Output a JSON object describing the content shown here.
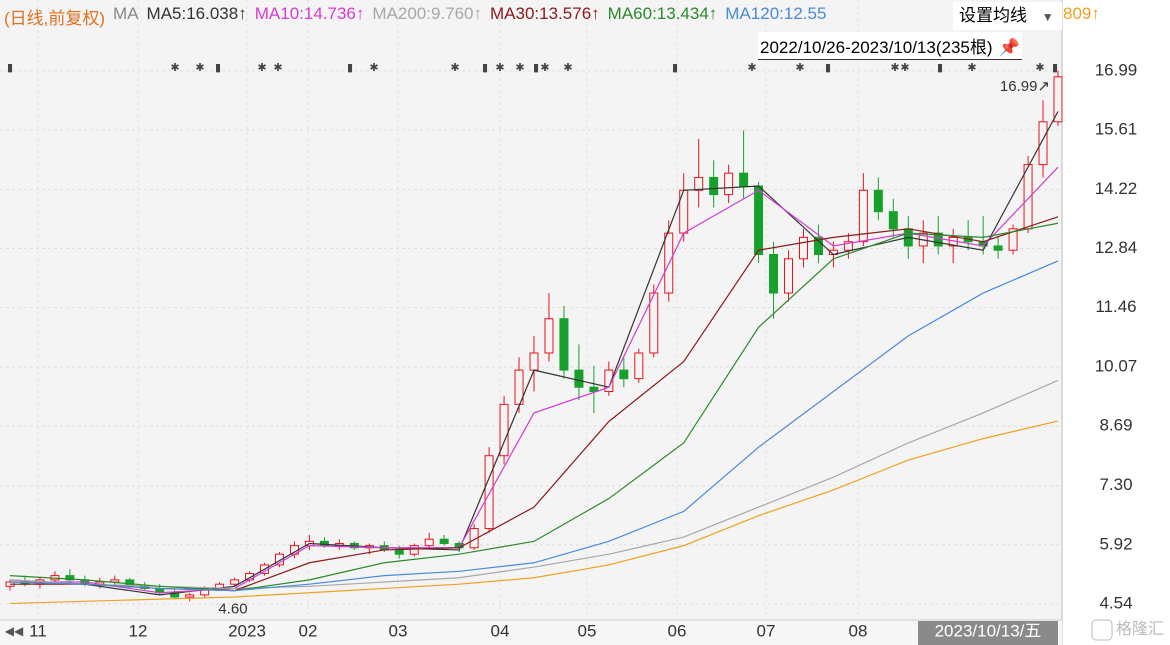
{
  "legend": {
    "mode": "(日线,前复权)",
    "prefix": "MA",
    "items": [
      {
        "text": "MA5:16.038↑",
        "color": "#333333"
      },
      {
        "text": "MA10:14.736↑",
        "color": "#d23cd2"
      },
      {
        "text": "MA200:9.760↑",
        "color": "#a8a8a8"
      },
      {
        "text": "MA30:13.576↑",
        "color": "#8b1a1a"
      },
      {
        "text": "MA60:13.434↑",
        "color": "#2a8a2a"
      },
      {
        "text": "MA120:12.55",
        "color": "#4a8ad8"
      }
    ],
    "tail": {
      "text": "809↑",
      "color": "#f0a020"
    }
  },
  "settings_button": "设置均线",
  "range": "2022/10/26-2023/10/13(235根)",
  "watermark": "格隆汇",
  "chart_data": {
    "type": "candlestick",
    "up_color": "#e8141c",
    "down_color": "#17a02c",
    "grid": true,
    "ylim": [
      4.28,
      17.36
    ],
    "yticks": [
      16.99,
      15.61,
      14.22,
      12.84,
      11.46,
      10.07,
      8.69,
      {
        "value": 7.3,
        "label": "7.30"
      },
      5.92,
      4.54
    ],
    "x_labels": [
      "11",
      "12",
      "2023",
      "02",
      "03",
      "04",
      "05",
      "06",
      "07",
      "08"
    ],
    "cursor_label": "2023/10/13/五",
    "annotations": [
      {
        "value": 4.6,
        "label": "4.60"
      },
      {
        "value": 16.99,
        "label": "16.99↗"
      }
    ],
    "candles": [
      [
        4.95,
        5.1,
        4.85,
        5.05
      ],
      [
        5.05,
        5.2,
        4.95,
        5.0
      ],
      [
        5.0,
        5.15,
        4.9,
        5.1
      ],
      [
        5.1,
        5.3,
        5.0,
        5.2
      ],
      [
        5.2,
        5.35,
        5.05,
        5.1
      ],
      [
        5.1,
        5.2,
        4.95,
        5.0
      ],
      [
        5.0,
        5.15,
        4.9,
        5.05
      ],
      [
        5.05,
        5.2,
        4.95,
        5.1
      ],
      [
        5.1,
        5.15,
        4.9,
        4.95
      ],
      [
        4.95,
        5.05,
        4.85,
        4.9
      ],
      [
        4.9,
        5.0,
        4.75,
        4.8
      ],
      [
        4.8,
        4.9,
        4.65,
        4.7
      ],
      [
        4.7,
        4.8,
        4.6,
        4.75
      ],
      [
        4.75,
        4.95,
        4.7,
        4.9
      ],
      [
        4.9,
        5.05,
        4.85,
        5.0
      ],
      [
        5.0,
        5.15,
        4.95,
        5.1
      ],
      [
        5.1,
        5.3,
        5.05,
        5.25
      ],
      [
        5.25,
        5.5,
        5.2,
        5.45
      ],
      [
        5.45,
        5.75,
        5.4,
        5.7
      ],
      [
        5.7,
        6.0,
        5.6,
        5.9
      ],
      [
        5.9,
        6.15,
        5.8,
        6.0
      ],
      [
        6.0,
        6.1,
        5.85,
        5.9
      ],
      [
        5.9,
        6.05,
        5.8,
        5.95
      ],
      [
        5.95,
        6.0,
        5.8,
        5.85
      ],
      [
        5.85,
        5.95,
        5.7,
        5.9
      ],
      [
        5.9,
        6.0,
        5.75,
        5.8
      ],
      [
        5.8,
        5.9,
        5.6,
        5.7
      ],
      [
        5.7,
        5.95,
        5.65,
        5.9
      ],
      [
        5.9,
        6.2,
        5.85,
        6.05
      ],
      [
        6.05,
        6.15,
        5.9,
        5.95
      ],
      [
        5.95,
        6.0,
        5.75,
        5.85
      ],
      [
        5.85,
        6.4,
        5.8,
        6.3
      ],
      [
        6.3,
        8.2,
        6.2,
        8.0
      ],
      [
        8.0,
        9.4,
        7.8,
        9.2
      ],
      [
        9.2,
        10.3,
        9.0,
        10.0
      ],
      [
        10.0,
        10.8,
        9.5,
        10.4
      ],
      [
        10.4,
        11.8,
        10.2,
        11.2
      ],
      [
        11.2,
        11.5,
        9.8,
        10.0
      ],
      [
        10.0,
        10.6,
        9.3,
        9.6
      ],
      [
        9.6,
        10.1,
        9.0,
        9.5
      ],
      [
        9.5,
        10.2,
        9.4,
        10.0
      ],
      [
        10.0,
        10.3,
        9.6,
        9.8
      ],
      [
        9.8,
        10.5,
        9.7,
        10.4
      ],
      [
        10.4,
        12.0,
        10.3,
        11.8
      ],
      [
        11.8,
        13.5,
        11.6,
        13.2
      ],
      [
        13.2,
        14.6,
        13.0,
        14.2
      ],
      [
        14.2,
        15.4,
        13.8,
        14.5
      ],
      [
        14.5,
        14.9,
        13.8,
        14.1
      ],
      [
        14.1,
        14.8,
        13.9,
        14.6
      ],
      [
        14.6,
        15.6,
        14.0,
        14.3
      ],
      [
        14.3,
        14.4,
        12.5,
        12.7
      ],
      [
        12.7,
        13.0,
        11.2,
        11.8
      ],
      [
        11.8,
        12.8,
        11.6,
        12.6
      ],
      [
        12.6,
        13.3,
        12.4,
        13.1
      ],
      [
        13.1,
        13.4,
        12.5,
        12.7
      ],
      [
        12.7,
        13.0,
        12.4,
        12.8
      ],
      [
        12.8,
        13.2,
        12.6,
        13.0
      ],
      [
        13.0,
        14.6,
        12.9,
        14.2
      ],
      [
        14.2,
        14.5,
        13.5,
        13.7
      ],
      [
        13.7,
        14.0,
        13.1,
        13.3
      ],
      [
        13.3,
        13.6,
        12.6,
        12.9
      ],
      [
        12.9,
        13.5,
        12.5,
        13.2
      ],
      [
        13.2,
        13.6,
        12.7,
        12.9
      ],
      [
        12.9,
        13.3,
        12.5,
        13.1
      ],
      [
        13.1,
        13.5,
        12.8,
        13.0
      ],
      [
        13.0,
        13.6,
        12.7,
        12.9
      ],
      [
        12.9,
        13.1,
        12.6,
        12.8
      ],
      [
        12.8,
        13.4,
        12.7,
        13.3
      ],
      [
        13.3,
        15.0,
        13.2,
        14.8
      ],
      [
        14.8,
        16.3,
        14.5,
        15.8
      ],
      [
        15.8,
        16.99,
        15.7,
        16.85
      ]
    ],
    "series": [
      {
        "color": "#333333",
        "values": [
          5.1,
          5.0,
          4.75,
          4.95,
          5.95,
          5.85,
          5.8,
          10.0,
          9.6,
          14.2,
          14.3,
          12.7,
          13.1,
          12.8,
          16.04
        ]
      },
      {
        "color": "#d23cd2",
        "values": [
          5.05,
          5.05,
          4.8,
          4.9,
          5.9,
          5.85,
          5.85,
          9.0,
          9.6,
          13.2,
          14.2,
          12.9,
          13.2,
          12.9,
          14.74
        ]
      },
      {
        "color": "#a8a8a8",
        "values": [
          5.1,
          5.0,
          4.95,
          4.9,
          4.95,
          5.05,
          5.15,
          5.4,
          5.7,
          6.1,
          6.8,
          7.5,
          8.3,
          9.0,
          9.76
        ]
      },
      {
        "color": "#8b1a1a",
        "values": [
          5.0,
          5.0,
          4.9,
          4.85,
          5.5,
          5.8,
          5.85,
          6.8,
          8.8,
          10.2,
          12.8,
          13.1,
          13.3,
          13.0,
          13.58
        ]
      },
      {
        "color": "#2a8a2a",
        "values": [
          5.2,
          5.1,
          4.95,
          4.85,
          5.1,
          5.5,
          5.7,
          6.0,
          7.0,
          8.3,
          11.0,
          12.6,
          13.2,
          13.1,
          13.43
        ]
      },
      {
        "color": "#4a8ad8",
        "values": [
          5.05,
          5.0,
          4.9,
          4.85,
          5.0,
          5.2,
          5.3,
          5.5,
          6.0,
          6.7,
          8.2,
          9.5,
          10.8,
          11.8,
          12.55
        ]
      },
      {
        "color": "#f0a020",
        "values": [
          4.55,
          4.6,
          4.65,
          4.7,
          4.8,
          4.9,
          5.0,
          5.15,
          5.45,
          5.9,
          6.6,
          7.2,
          7.9,
          8.4,
          8.81
        ]
      }
    ]
  }
}
